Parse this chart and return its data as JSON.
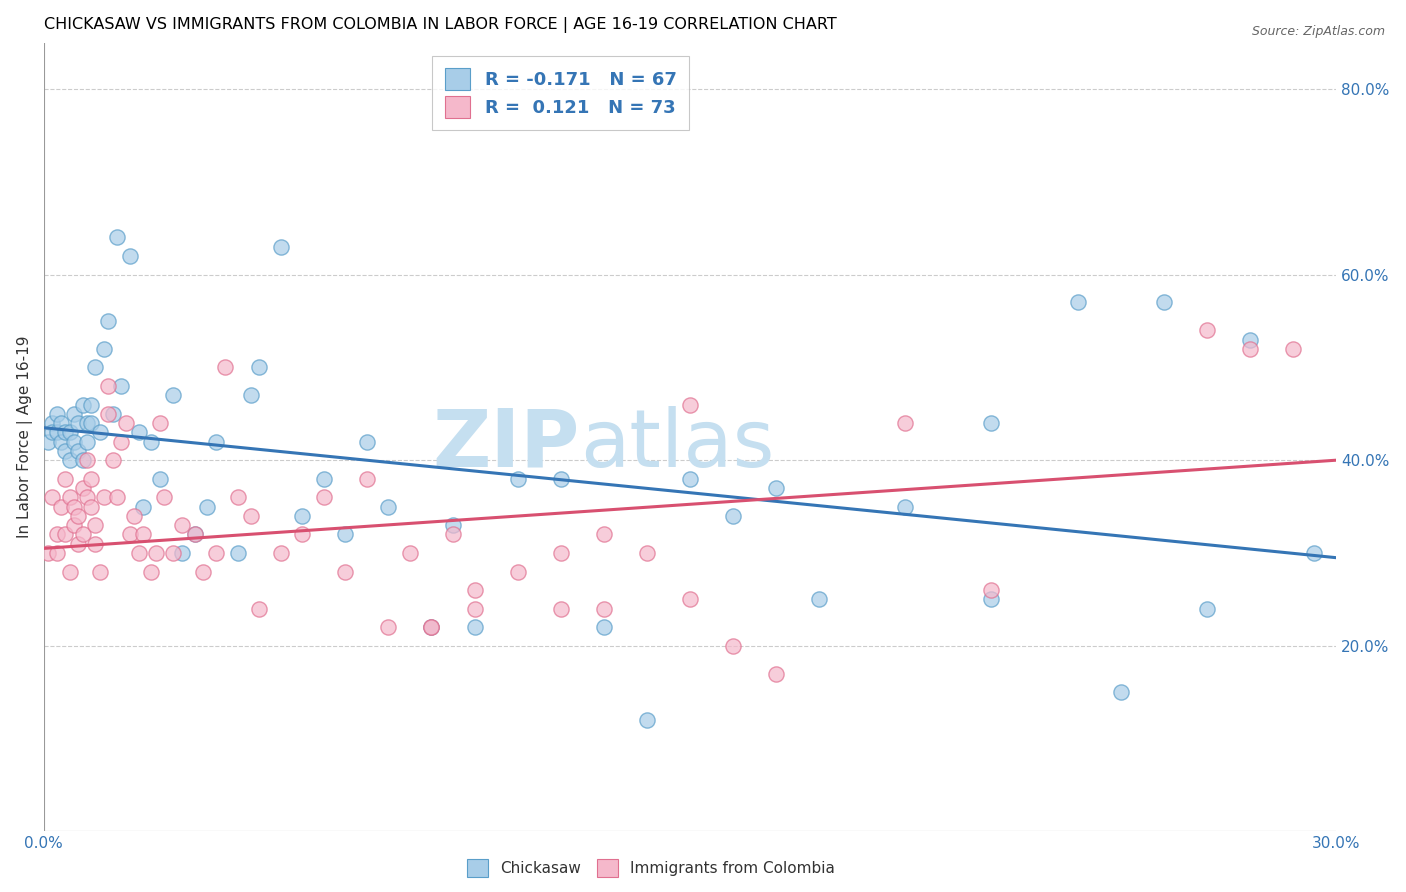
{
  "title": "CHICKASAW VS IMMIGRANTS FROM COLOMBIA IN LABOR FORCE | AGE 16-19 CORRELATION CHART",
  "source": "Source: ZipAtlas.com",
  "ylabel": "In Labor Force | Age 16-19",
  "xlim": [
    0.0,
    0.3
  ],
  "ylim": [
    0.0,
    0.85
  ],
  "right_yticks": [
    0.2,
    0.4,
    0.6,
    0.8
  ],
  "right_yticklabels": [
    "20.0%",
    "40.0%",
    "60.0%",
    "80.0%"
  ],
  "blue_color": "#a8cde8",
  "pink_color": "#f5b8cb",
  "blue_edge_color": "#5a9ec9",
  "pink_edge_color": "#e07090",
  "blue_line_color": "#3575b5",
  "pink_line_color": "#d85070",
  "watermark_color": "#c5dff0",
  "blue_line_y0": 0.435,
  "blue_line_y1": 0.295,
  "pink_line_y0": 0.305,
  "pink_line_y1": 0.4,
  "chickasaw_x": [
    0.001,
    0.002,
    0.002,
    0.003,
    0.003,
    0.004,
    0.004,
    0.005,
    0.005,
    0.006,
    0.006,
    0.007,
    0.007,
    0.008,
    0.008,
    0.009,
    0.009,
    0.01,
    0.01,
    0.011,
    0.011,
    0.012,
    0.013,
    0.014,
    0.015,
    0.016,
    0.017,
    0.018,
    0.02,
    0.022,
    0.023,
    0.025,
    0.027,
    0.03,
    0.032,
    0.035,
    0.038,
    0.04,
    0.045,
    0.048,
    0.05,
    0.055,
    0.06,
    0.065,
    0.07,
    0.075,
    0.08,
    0.09,
    0.095,
    0.1,
    0.11,
    0.12,
    0.13,
    0.14,
    0.15,
    0.16,
    0.17,
    0.18,
    0.2,
    0.22,
    0.24,
    0.26,
    0.27,
    0.28,
    0.295,
    0.22,
    0.25
  ],
  "chickasaw_y": [
    0.42,
    0.44,
    0.43,
    0.45,
    0.43,
    0.44,
    0.42,
    0.41,
    0.43,
    0.4,
    0.43,
    0.45,
    0.42,
    0.44,
    0.41,
    0.46,
    0.4,
    0.44,
    0.42,
    0.46,
    0.44,
    0.5,
    0.43,
    0.52,
    0.55,
    0.45,
    0.64,
    0.48,
    0.62,
    0.43,
    0.35,
    0.42,
    0.38,
    0.47,
    0.3,
    0.32,
    0.35,
    0.42,
    0.3,
    0.47,
    0.5,
    0.63,
    0.34,
    0.38,
    0.32,
    0.42,
    0.35,
    0.22,
    0.33,
    0.22,
    0.38,
    0.38,
    0.22,
    0.12,
    0.38,
    0.34,
    0.37,
    0.25,
    0.35,
    0.44,
    0.57,
    0.57,
    0.24,
    0.53,
    0.3,
    0.25,
    0.15
  ],
  "colombia_x": [
    0.001,
    0.002,
    0.003,
    0.003,
    0.004,
    0.005,
    0.005,
    0.006,
    0.006,
    0.007,
    0.007,
    0.008,
    0.008,
    0.009,
    0.009,
    0.01,
    0.01,
    0.011,
    0.011,
    0.012,
    0.012,
    0.013,
    0.014,
    0.015,
    0.015,
    0.016,
    0.017,
    0.018,
    0.019,
    0.02,
    0.021,
    0.022,
    0.023,
    0.025,
    0.026,
    0.027,
    0.028,
    0.03,
    0.032,
    0.035,
    0.037,
    0.04,
    0.042,
    0.045,
    0.048,
    0.05,
    0.055,
    0.06,
    0.065,
    0.07,
    0.075,
    0.08,
    0.085,
    0.09,
    0.095,
    0.1,
    0.11,
    0.12,
    0.13,
    0.14,
    0.15,
    0.16,
    0.17,
    0.2,
    0.22,
    0.27,
    0.28,
    0.29,
    0.15,
    0.13,
    0.12,
    0.09,
    0.1
  ],
  "colombia_y": [
    0.3,
    0.36,
    0.32,
    0.3,
    0.35,
    0.38,
    0.32,
    0.36,
    0.28,
    0.33,
    0.35,
    0.31,
    0.34,
    0.37,
    0.32,
    0.4,
    0.36,
    0.38,
    0.35,
    0.31,
    0.33,
    0.28,
    0.36,
    0.45,
    0.48,
    0.4,
    0.36,
    0.42,
    0.44,
    0.32,
    0.34,
    0.3,
    0.32,
    0.28,
    0.3,
    0.44,
    0.36,
    0.3,
    0.33,
    0.32,
    0.28,
    0.3,
    0.5,
    0.36,
    0.34,
    0.24,
    0.3,
    0.32,
    0.36,
    0.28,
    0.38,
    0.22,
    0.3,
    0.22,
    0.32,
    0.24,
    0.28,
    0.3,
    0.24,
    0.3,
    0.25,
    0.2,
    0.17,
    0.44,
    0.26,
    0.54,
    0.52,
    0.52,
    0.46,
    0.32,
    0.24,
    0.22,
    0.26
  ]
}
